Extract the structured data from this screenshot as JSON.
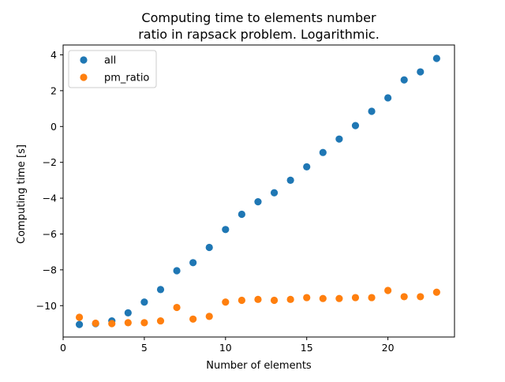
{
  "chart_data": {
    "type": "scatter",
    "title_lines": [
      "Computing time to elements number",
      "ratio in rapsack problem. Logarithmic."
    ],
    "xlabel": "Number of elements",
    "ylabel": "Computing time [s]",
    "xlim": [
      0,
      24.1
    ],
    "ylim": [
      -11.75,
      4.55
    ],
    "xticks": [
      0,
      5,
      10,
      15,
      20
    ],
    "xtick_labels": [
      "0",
      "5",
      "10",
      "15",
      "20"
    ],
    "yticks": [
      4,
      2,
      0,
      -2,
      -4,
      -6,
      -8,
      -10
    ],
    "ytick_labels": [
      "4",
      "2",
      "0",
      "−2",
      "−4",
      "−6",
      "−8",
      "−10"
    ],
    "grid": false,
    "legend_position": "upper-left",
    "x": [
      1,
      2,
      3,
      4,
      5,
      6,
      7,
      8,
      9,
      10,
      11,
      12,
      13,
      14,
      15,
      16,
      17,
      18,
      19,
      20,
      21,
      22,
      23
    ],
    "series": [
      {
        "name": "all",
        "color": "#1f77b4",
        "values": [
          -11.05,
          -11.0,
          -10.85,
          -10.4,
          -9.8,
          -9.1,
          -8.05,
          -7.6,
          -6.75,
          -5.75,
          -4.9,
          -4.2,
          -3.7,
          -3.0,
          -2.25,
          -1.45,
          -0.7,
          0.05,
          0.85,
          1.6,
          2.6,
          3.05,
          3.8
        ]
      },
      {
        "name": "pm_ratio",
        "color": "#ff7f0e",
        "values": [
          -10.65,
          -10.98,
          -11.0,
          -10.95,
          -10.95,
          -10.85,
          -10.1,
          -10.75,
          -10.6,
          -9.8,
          -9.7,
          -9.65,
          -9.7,
          -9.65,
          -9.55,
          -9.6,
          -9.6,
          -9.55,
          -9.55,
          -9.15,
          -9.5,
          -9.5,
          -9.25
        ]
      }
    ]
  }
}
